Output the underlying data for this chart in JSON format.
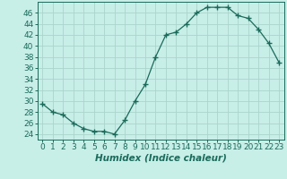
{
  "x": [
    0,
    1,
    2,
    3,
    4,
    5,
    6,
    7,
    8,
    9,
    10,
    11,
    12,
    13,
    14,
    15,
    16,
    17,
    18,
    19,
    20,
    21,
    22,
    23
  ],
  "y": [
    29.5,
    28,
    27.5,
    26,
    25,
    24.5,
    24.5,
    24,
    26.5,
    30,
    33,
    38,
    42,
    42.5,
    44,
    46,
    47,
    47,
    47,
    45.5,
    45,
    43,
    40.5,
    37
  ],
  "line_color": "#1a6b5a",
  "marker": "+",
  "marker_size": 4,
  "bg_color": "#c8eee8",
  "grid_color": "#aad4cc",
  "xlabel": "Humidex (Indice chaleur)",
  "xlim": [
    -0.5,
    23.5
  ],
  "ylim": [
    23,
    48
  ],
  "yticks": [
    24,
    26,
    28,
    30,
    32,
    34,
    36,
    38,
    40,
    42,
    44,
    46
  ],
  "xticks": [
    0,
    1,
    2,
    3,
    4,
    5,
    6,
    7,
    8,
    9,
    10,
    11,
    12,
    13,
    14,
    15,
    16,
    17,
    18,
    19,
    20,
    21,
    22,
    23
  ],
  "xlabel_fontsize": 7.5,
  "tick_fontsize": 6.5
}
